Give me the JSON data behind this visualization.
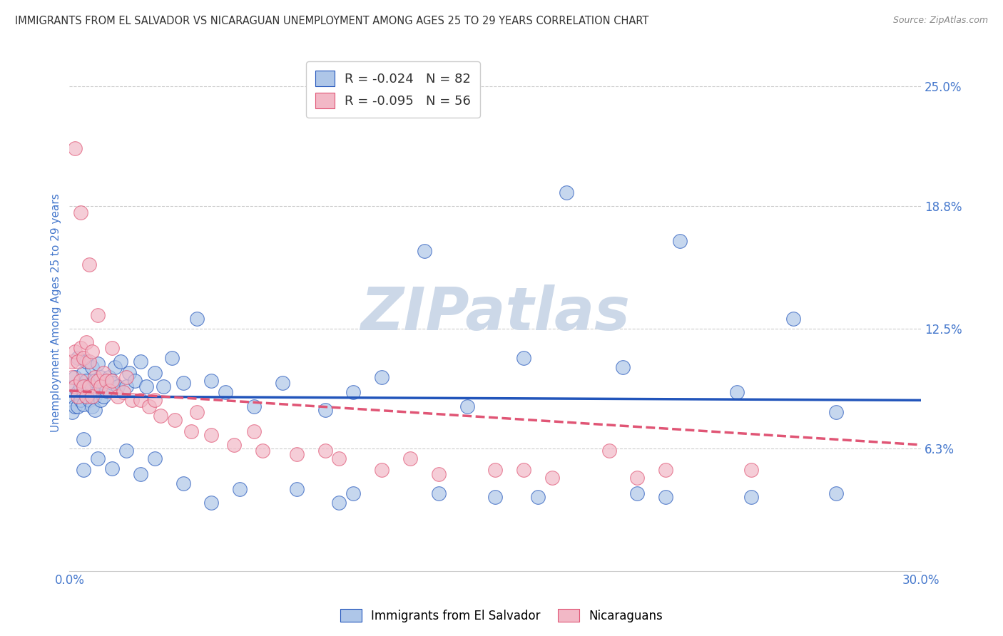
{
  "title": "IMMIGRANTS FROM EL SALVADOR VS NICARAGUAN UNEMPLOYMENT AMONG AGES 25 TO 29 YEARS CORRELATION CHART",
  "source": "Source: ZipAtlas.com",
  "ylabel": "Unemployment Among Ages 25 to 29 years",
  "xlim": [
    0.0,
    0.3
  ],
  "ylim": [
    0.0,
    0.266
  ],
  "xtick_positions": [
    0.0,
    0.3
  ],
  "xticklabels": [
    "0.0%",
    "30.0%"
  ],
  "yticks": [
    0.063,
    0.125,
    0.188,
    0.25
  ],
  "yticklabels": [
    "6.3%",
    "12.5%",
    "18.8%",
    "25.0%"
  ],
  "legend_labels": [
    "Immigrants from El Salvador",
    "Nicaraguans"
  ],
  "r_blue": -0.024,
  "n_blue": 82,
  "r_pink": -0.095,
  "n_pink": 56,
  "blue_color": "#aec6e8",
  "pink_color": "#f2b8c6",
  "blue_line_color": "#2255bb",
  "pink_line_color": "#e05575",
  "title_color": "#333333",
  "axis_label_color": "#4477cc",
  "tick_label_color": "#4477cc",
  "watermark_color": "#ccd8e8",
  "background_color": "#ffffff",
  "blue_trend_start": 0.09,
  "blue_trend_end": 0.088,
  "pink_trend_start": 0.093,
  "pink_trend_end": 0.065,
  "blue_scatter_x": [
    0.001,
    0.001,
    0.002,
    0.002,
    0.002,
    0.003,
    0.003,
    0.003,
    0.004,
    0.004,
    0.005,
    0.005,
    0.005,
    0.006,
    0.006,
    0.006,
    0.007,
    0.007,
    0.008,
    0.008,
    0.008,
    0.009,
    0.009,
    0.009,
    0.01,
    0.01,
    0.011,
    0.011,
    0.012,
    0.012,
    0.013,
    0.014,
    0.015,
    0.016,
    0.017,
    0.018,
    0.02,
    0.021,
    0.023,
    0.025,
    0.027,
    0.03,
    0.033,
    0.036,
    0.04,
    0.045,
    0.05,
    0.055,
    0.065,
    0.075,
    0.09,
    0.1,
    0.11,
    0.125,
    0.14,
    0.16,
    0.175,
    0.195,
    0.215,
    0.235,
    0.255,
    0.27,
    0.005,
    0.01,
    0.015,
    0.02,
    0.03,
    0.04,
    0.06,
    0.08,
    0.1,
    0.13,
    0.165,
    0.2,
    0.24,
    0.005,
    0.025,
    0.05,
    0.095,
    0.15,
    0.21,
    0.27
  ],
  "blue_scatter_y": [
    0.09,
    0.082,
    0.095,
    0.085,
    0.1,
    0.092,
    0.085,
    0.11,
    0.095,
    0.088,
    0.102,
    0.093,
    0.086,
    0.098,
    0.09,
    0.108,
    0.096,
    0.088,
    0.105,
    0.095,
    0.085,
    0.098,
    0.09,
    0.083,
    0.107,
    0.092,
    0.1,
    0.088,
    0.097,
    0.09,
    0.093,
    0.1,
    0.097,
    0.105,
    0.095,
    0.108,
    0.095,
    0.102,
    0.098,
    0.108,
    0.095,
    0.102,
    0.095,
    0.11,
    0.097,
    0.13,
    0.098,
    0.092,
    0.085,
    0.097,
    0.083,
    0.092,
    0.1,
    0.165,
    0.085,
    0.11,
    0.195,
    0.105,
    0.17,
    0.092,
    0.13,
    0.082,
    0.052,
    0.058,
    0.053,
    0.062,
    0.058,
    0.045,
    0.042,
    0.042,
    0.04,
    0.04,
    0.038,
    0.04,
    0.038,
    0.068,
    0.05,
    0.035,
    0.035,
    0.038,
    0.038,
    0.04
  ],
  "pink_scatter_x": [
    0.001,
    0.001,
    0.002,
    0.002,
    0.003,
    0.003,
    0.004,
    0.004,
    0.005,
    0.005,
    0.006,
    0.006,
    0.007,
    0.007,
    0.008,
    0.008,
    0.009,
    0.01,
    0.011,
    0.012,
    0.013,
    0.014,
    0.015,
    0.017,
    0.019,
    0.022,
    0.025,
    0.028,
    0.032,
    0.037,
    0.043,
    0.05,
    0.058,
    0.068,
    0.08,
    0.095,
    0.11,
    0.13,
    0.15,
    0.17,
    0.19,
    0.21,
    0.002,
    0.004,
    0.007,
    0.01,
    0.015,
    0.02,
    0.03,
    0.045,
    0.065,
    0.09,
    0.12,
    0.16,
    0.2,
    0.24
  ],
  "pink_scatter_y": [
    0.1,
    0.108,
    0.113,
    0.095,
    0.108,
    0.09,
    0.115,
    0.098,
    0.11,
    0.095,
    0.118,
    0.09,
    0.108,
    0.095,
    0.113,
    0.09,
    0.1,
    0.098,
    0.095,
    0.102,
    0.098,
    0.093,
    0.098,
    0.09,
    0.092,
    0.088,
    0.088,
    0.085,
    0.08,
    0.078,
    0.072,
    0.07,
    0.065,
    0.062,
    0.06,
    0.058,
    0.052,
    0.05,
    0.052,
    0.048,
    0.062,
    0.052,
    0.218,
    0.185,
    0.158,
    0.132,
    0.115,
    0.1,
    0.088,
    0.082,
    0.072,
    0.062,
    0.058,
    0.052,
    0.048,
    0.052
  ]
}
